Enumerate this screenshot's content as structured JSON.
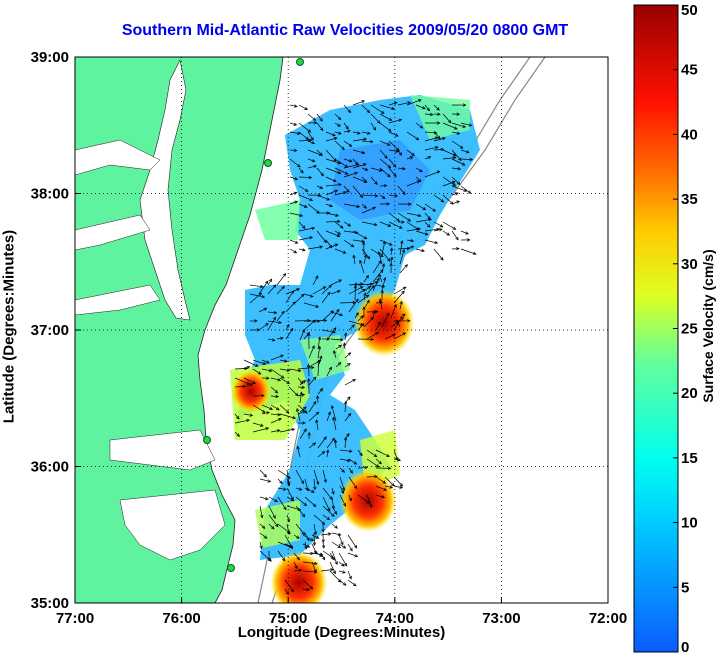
{
  "chart_data": {
    "type": "heatmap",
    "title": "Southern Mid-Atlantic Raw Velocities 2009/05/20 0800 GMT",
    "xlabel": "Longitude (Degrees:Minutes)",
    "ylabel": "Latitude (Degrees:Minutes)",
    "x_ticks": [
      "77:00",
      "76:00",
      "75:00",
      "74:00",
      "73:00",
      "72:00"
    ],
    "y_ticks": [
      "39:00",
      "38:00",
      "37:00",
      "36:00",
      "35:00"
    ],
    "xlim": [
      -77,
      -72
    ],
    "ylim": [
      35,
      39
    ],
    "grid": true,
    "colorbar": {
      "label": "Surface Velocity (cm/s)",
      "ticks": [
        "0",
        "5",
        "10",
        "15",
        "20",
        "25",
        "30",
        "35",
        "40",
        "45",
        "50"
      ],
      "range": [
        0,
        50
      ],
      "colormap": "jet"
    },
    "colors": {
      "land": "#5ff29f",
      "title": "#0000ee"
    },
    "regions": [
      {
        "lon": -74.4,
        "lat": 37.6,
        "speed": 8
      },
      {
        "lon": -74.0,
        "lat": 38.0,
        "speed": 6
      },
      {
        "lon": -74.1,
        "lat": 37.05,
        "speed": 48
      },
      {
        "lon": -75.35,
        "lat": 36.55,
        "speed": 36
      },
      {
        "lon": -74.25,
        "lat": 35.75,
        "speed": 46
      },
      {
        "lon": -74.9,
        "lat": 35.15,
        "speed": 46
      },
      {
        "lon": -74.7,
        "lat": 36.1,
        "speed": 12
      }
    ]
  }
}
